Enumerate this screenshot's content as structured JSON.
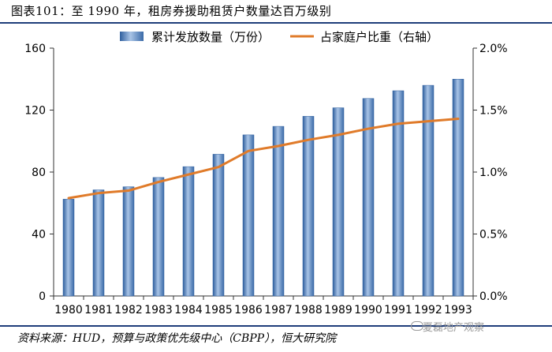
{
  "title": "图表101：至 1990 年，租房券援助租赁户数量达百万级别",
  "source": "资料来源：HUD，预算与政策优先级中心（CBPP），恒大研究院",
  "watermark": "夏磊地产观察",
  "colors": {
    "bar": "#4f81bd",
    "bar_light": "#a9c4e6",
    "line": "#e07b2a",
    "rule": "#1f3d7a"
  },
  "chart_data": {
    "type": "bar",
    "categories": [
      "1980",
      "1981",
      "1982",
      "1983",
      "1984",
      "1985",
      "1986",
      "1987",
      "1988",
      "1989",
      "1990",
      "1991",
      "1992",
      "1993"
    ],
    "series": [
      {
        "name": "累计发放数量（万份）",
        "type": "bar",
        "axis": "left",
        "values": [
          62.5,
          68.5,
          70.5,
          76.5,
          83.5,
          91.5,
          104,
          109.5,
          116,
          121.5,
          127.5,
          132.5,
          136,
          140
        ]
      },
      {
        "name": "占家庭户比重（右轴）",
        "type": "line",
        "axis": "right",
        "values": [
          0.79,
          0.83,
          0.85,
          0.92,
          0.98,
          1.04,
          1.17,
          1.21,
          1.26,
          1.3,
          1.35,
          1.39,
          1.41,
          1.43
        ]
      }
    ],
    "ylim": [
      0,
      160
    ],
    "yticks": [
      "0",
      "40",
      "80",
      "120",
      "160"
    ],
    "y2lim": [
      0,
      2.0
    ],
    "y2ticks": [
      "0.0%",
      "0.5%",
      "1.0%",
      "1.5%",
      "2.0%"
    ],
    "legend": "top",
    "grid": false
  }
}
